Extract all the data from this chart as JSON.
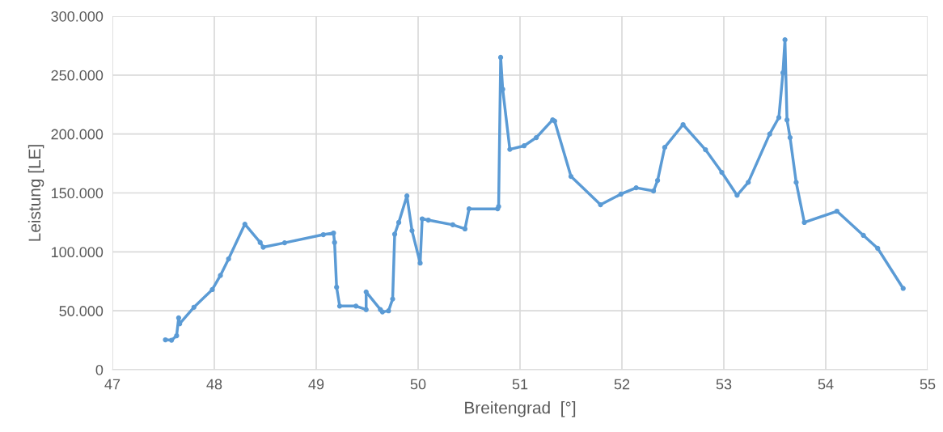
{
  "chart_data": {
    "type": "line",
    "xlabel": "Breitengrad  [°]",
    "ylabel": "Leistung [LE]",
    "xlim": [
      47,
      55
    ],
    "xticks": [
      47,
      48,
      49,
      50,
      51,
      52,
      53,
      54,
      55
    ],
    "ylim": [
      0,
      300000
    ],
    "yticks": [
      {
        "value": 0,
        "label": "0"
      },
      {
        "value": 50000,
        "label": "50.000"
      },
      {
        "value": 100000,
        "label": "100.000"
      },
      {
        "value": 150000,
        "label": "150.000"
      },
      {
        "value": 200000,
        "label": "200.000"
      },
      {
        "value": 250000,
        "label": "250.000"
      },
      {
        "value": 300000,
        "label": "300.000"
      }
    ],
    "grid": true,
    "legend": false,
    "marker": "circle",
    "line_style": "solid",
    "series": [
      {
        "color": "#5b9bd5",
        "x": [
          47.52,
          47.58,
          47.63,
          47.65,
          47.66,
          47.8,
          47.98,
          48.06,
          48.14,
          48.3,
          48.45,
          48.48,
          48.69,
          49.07,
          49.17,
          49.18,
          49.2,
          49.23,
          49.39,
          49.49,
          49.49,
          49.63,
          49.65,
          49.71,
          49.75,
          49.77,
          49.81,
          49.89,
          49.94,
          50.02,
          50.04,
          50.1,
          50.34,
          50.46,
          50.5,
          50.78,
          50.79,
          50.81,
          50.83,
          50.9,
          51.04,
          51.16,
          51.32,
          51.34,
          51.5,
          51.79,
          51.99,
          52.14,
          52.31,
          52.35,
          52.42,
          52.6,
          52.82,
          52.98,
          53.13,
          53.24,
          53.45,
          53.54,
          53.58,
          53.6,
          53.62,
          53.65,
          53.71,
          53.79,
          54.11,
          54.37,
          54.51,
          54.76
        ],
        "values": [
          25400,
          25000,
          28800,
          44000,
          39000,
          53000,
          68000,
          80000,
          94000,
          123500,
          108000,
          104000,
          107700,
          114600,
          116000,
          108000,
          70000,
          54000,
          54000,
          51000,
          66000,
          51000,
          49000,
          50000,
          60000,
          115000,
          125000,
          147500,
          118000,
          90500,
          128000,
          127000,
          123000,
          119500,
          136500,
          136500,
          138500,
          265000,
          238000,
          187000,
          190000,
          197000,
          212000,
          211000,
          164000,
          140000,
          149000,
          154400,
          151700,
          160600,
          188700,
          208000,
          186700,
          167500,
          148000,
          159000,
          200000,
          214000,
          252000,
          280000,
          212000,
          197000,
          159000,
          125000,
          134500,
          114000,
          103000,
          69000
        ]
      }
    ]
  }
}
